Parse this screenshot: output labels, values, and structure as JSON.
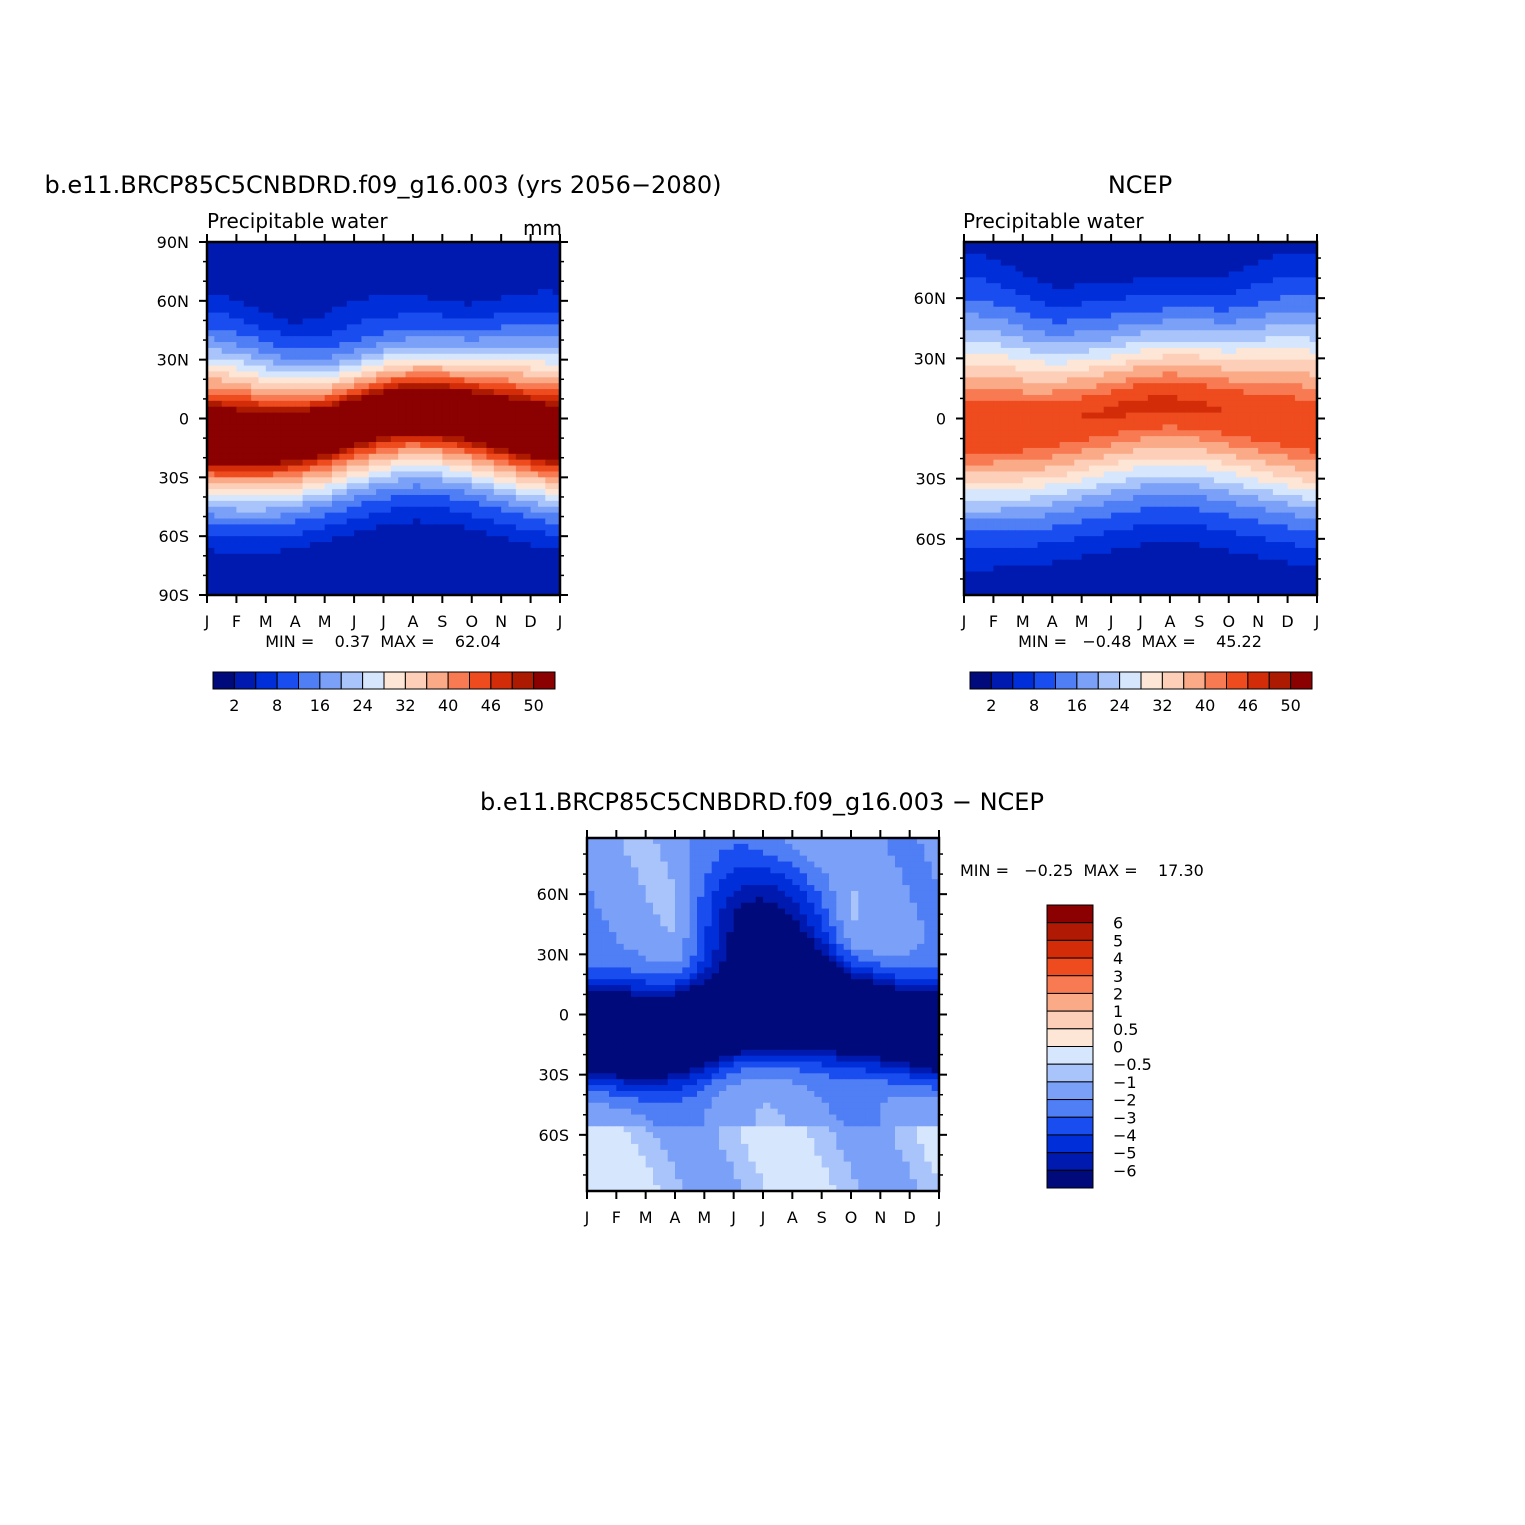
{
  "figure": {
    "panel_model_title": "b.e11.BRCP85C5CNBDRD.f09_g16.003 (yrs 2056−2080)",
    "panel_obs_title": "NCEP",
    "panel_diff_title": "b.e11.BRCP85C5CNBDRD.f09_g16.003 − NCEP"
  },
  "chart_data": [
    {
      "type": "heatmap",
      "id": "model",
      "variable_label": "Precipitable water",
      "units": "mm",
      "x_ticks": [
        "J",
        "F",
        "M",
        "A",
        "M",
        "J",
        "J",
        "A",
        "S",
        "O",
        "N",
        "D",
        "J"
      ],
      "y_ticks": [
        "90N",
        "60N",
        "30N",
        "0",
        "30S",
        "60S",
        "90S"
      ],
      "stats_text": "MIN =    0.37  MAX =    62.04",
      "min": 0.37,
      "max": 62.04,
      "colorbar": {
        "labels": [
          "2",
          "8",
          "16",
          "24",
          "32",
          "40",
          "46",
          "50"
        ],
        "colors": [
          "#000a7a",
          "#001ab0",
          "#002ed8",
          "#1a4df0",
          "#4f7ef5",
          "#7aa0f8",
          "#a8c4fa",
          "#d6e6fd",
          "#fde6d6",
          "#fdcfb8",
          "#fbaa88",
          "#f87a52",
          "#ee4b1e",
          "#d22d08",
          "#ad1a02",
          "#8b0000"
        ]
      },
      "itcz_lat_by_month": [
        -10,
        -11,
        -11,
        -9,
        -6,
        -1,
        3,
        5,
        4,
        1,
        -3,
        -7,
        -10
      ],
      "equator_value": 55,
      "equator_width": 16
    },
    {
      "type": "heatmap",
      "id": "obs",
      "variable_label": "Precipitable water",
      "x_ticks": [
        "J",
        "F",
        "M",
        "A",
        "M",
        "J",
        "J",
        "A",
        "S",
        "O",
        "N",
        "D",
        "J"
      ],
      "y_ticks": [
        "60N",
        "30N",
        "0",
        "30S",
        "60S"
      ],
      "stats_text": "MIN =   −0.48  MAX =    45.22",
      "min": -0.48,
      "max": 45.22,
      "colorbar": {
        "labels": [
          "2",
          "8",
          "16",
          "24",
          "32",
          "40",
          "46",
          "50"
        ],
        "colors": [
          "#000a7a",
          "#001ab0",
          "#002ed8",
          "#1a4df0",
          "#4f7ef5",
          "#7aa0f8",
          "#a8c4fa",
          "#d6e6fd",
          "#fde6d6",
          "#fdcfb8",
          "#fbaa88",
          "#f87a52",
          "#ee4b1e",
          "#d22d08",
          "#ad1a02",
          "#8b0000"
        ]
      },
      "itcz_lat_by_month": [
        -6,
        -6,
        -5,
        -3,
        0,
        3,
        6,
        7,
        6,
        3,
        0,
        -3,
        -6
      ],
      "equator_value": 44,
      "equator_width": 20
    },
    {
      "type": "heatmap",
      "id": "diff",
      "x_ticks": [
        "J",
        "F",
        "M",
        "A",
        "M",
        "J",
        "J",
        "A",
        "S",
        "O",
        "N",
        "D",
        "J"
      ],
      "y_ticks": [
        "60N",
        "30N",
        "0",
        "30S",
        "60S"
      ],
      "stats_text": "MIN =   −0.25  MAX =    17.30",
      "min": -0.25,
      "max": 17.3,
      "colorbar": {
        "labels": [
          "6",
          "5",
          "4",
          "3",
          "2",
          "1",
          "0.5",
          "0",
          "−0.5",
          "−1",
          "−2",
          "−3",
          "−4",
          "−5",
          "−6"
        ],
        "colors": [
          "#8b0000",
          "#b01a04",
          "#d22d08",
          "#ee4b1e",
          "#f87a52",
          "#fbaa88",
          "#fdcfb8",
          "#fde6d6",
          "#d6e6fd",
          "#a8c4fa",
          "#7aa0f8",
          "#4f7ef5",
          "#1a4df0",
          "#002ed8",
          "#001ab0",
          "#000a7a"
        ]
      }
    }
  ]
}
